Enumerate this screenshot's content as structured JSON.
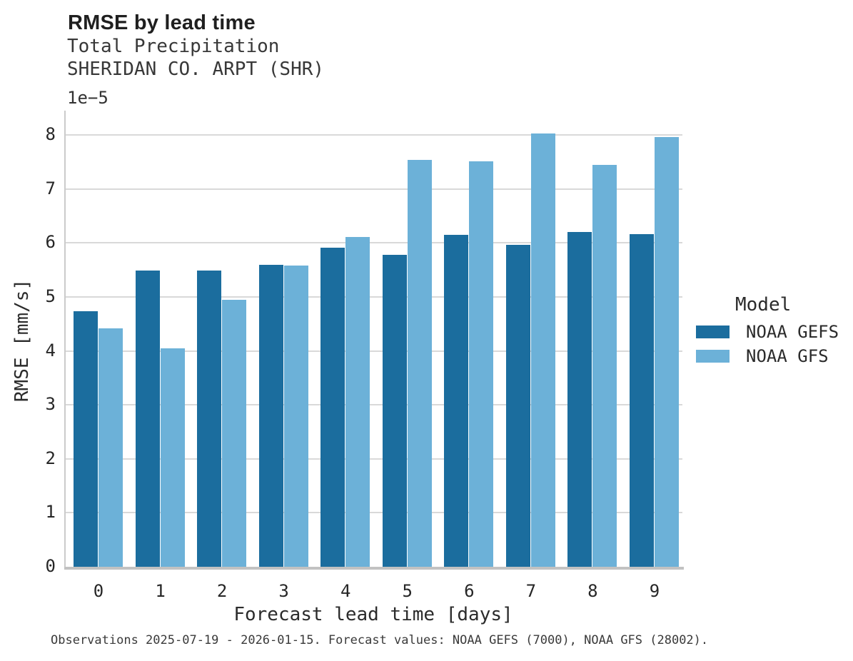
{
  "header": {
    "title": "RMSE by lead time",
    "subtitle_line1": "Total Precipitation",
    "subtitle_line2": "SHERIDAN CO. ARPT (SHR)"
  },
  "footer": {
    "note": "Observations 2025-07-19 - 2026-01-15. Forecast values: NOAA GEFS (7000), NOAA GFS (28002)."
  },
  "colors": {
    "gefs_bar": "#1b6d9e",
    "gfs_bar": "#6cb1d8",
    "gridline": "#d9d9d9",
    "axis_spine": "#c2c2c2",
    "text_dark": "#1f1f1f",
    "text_gray": "#383838"
  },
  "chart_data": {
    "type": "bar",
    "title": "RMSE by lead time",
    "subtitle": [
      "Total Precipitation",
      "SHERIDAN CO. ARPT (SHR)"
    ],
    "xlabel": "Forecast lead time [days]",
    "ylabel": "RMSE [mm/s]",
    "y_offset_text": "1e−5",
    "y_unit_scale": 1e-05,
    "categories": [
      "0",
      "1",
      "2",
      "3",
      "4",
      "5",
      "6",
      "7",
      "8",
      "9"
    ],
    "yticks": [
      "0",
      "1",
      "2",
      "3",
      "4",
      "5",
      "6",
      "7",
      "8"
    ],
    "ylim": [
      0,
      8.45
    ],
    "grid": "horizontal",
    "legend_title": "Model",
    "legend_position": "right",
    "series": [
      {
        "name": "NOAA GEFS",
        "color": "#1b6d9e",
        "values": [
          4.74,
          5.49,
          5.49,
          5.6,
          5.91,
          5.78,
          6.15,
          5.96,
          6.2,
          6.16
        ]
      },
      {
        "name": "NOAA GFS",
        "color": "#6cb1d8",
        "values": [
          4.42,
          4.04,
          4.95,
          5.58,
          6.11,
          7.54,
          7.51,
          8.03,
          7.45,
          7.96
        ]
      }
    ]
  }
}
